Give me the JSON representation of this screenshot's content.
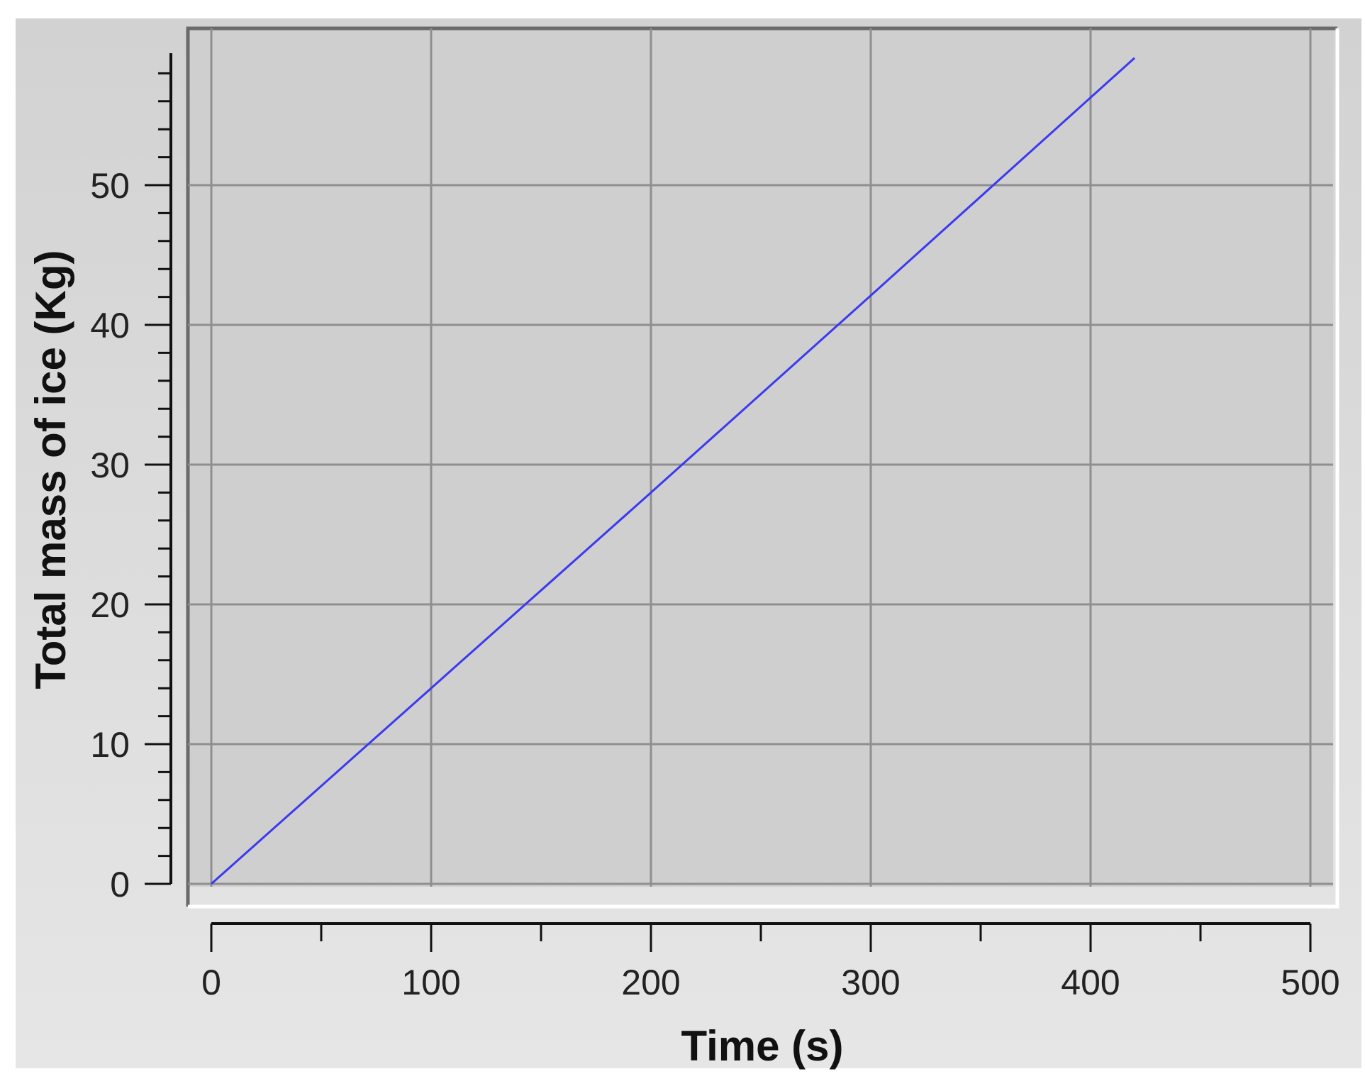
{
  "chart_data": {
    "type": "line",
    "title": "",
    "xlabel": "Time (s)",
    "ylabel": "Total mass of ice (Kg)",
    "xlim": [
      0,
      500
    ],
    "ylim": [
      0,
      60
    ],
    "x_ticks": [
      0,
      100,
      200,
      300,
      400,
      500
    ],
    "x_tick_labels": [
      "0",
      "100",
      "200",
      "300",
      "400",
      "500"
    ],
    "y_ticks": [
      0,
      10,
      20,
      30,
      40,
      50
    ],
    "y_tick_labels": [
      "0",
      "10",
      "20",
      "30",
      "40",
      "50"
    ],
    "grid": true,
    "legend": "none",
    "series": [
      {
        "color": "#3a3af0",
        "x": [
          0,
          100,
          200,
          300,
          420
        ],
        "y": [
          0,
          14,
          28,
          42.1,
          59.1
        ]
      }
    ],
    "colors": {
      "outer_background": "#e3e3e3",
      "plot_background": "#cfcfcf",
      "grid": "#8f8f8f",
      "axis": "#111111"
    }
  }
}
